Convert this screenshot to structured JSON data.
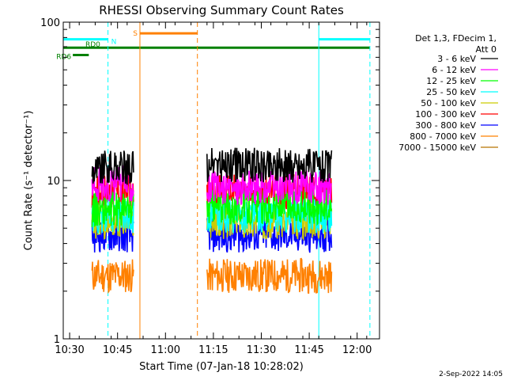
{
  "chart_data": {
    "type": "line",
    "title": "RHESSI Observing Summary Count Rates",
    "xlabel": "Start Time (07-Jan-18 10:28:02)",
    "ylabel": "Count Rate (s⁻¹ detector⁻¹)",
    "y_scale": "log",
    "ylim": [
      1,
      100
    ],
    "xlim": [
      "10:28",
      "12:07"
    ],
    "x_ticks": [
      "10:30",
      "10:45",
      "11:00",
      "11:15",
      "11:30",
      "11:45",
      "12:00"
    ],
    "y_ticks": [
      "1",
      "10",
      "100"
    ],
    "legend_header": [
      "Det 1,3, FDecim 1,",
      "Att 0"
    ],
    "legend_position": "right",
    "series": [
      {
        "name": "3 - 6 keV",
        "color": "#000000",
        "segments": [
          {
            "start": "10:37",
            "end": "10:50",
            "level": 12.0
          },
          {
            "start": "11:13",
            "end": "11:52",
            "level": 12.5
          }
        ]
      },
      {
        "name": "6 - 12 keV",
        "color": "#ff00ff",
        "segments": [
          {
            "start": "10:37",
            "end": "10:50",
            "level": 9.5
          },
          {
            "start": "11:13",
            "end": "11:52",
            "level": 9.0
          }
        ]
      },
      {
        "name": "12 - 25 keV",
        "color": "#00ff00",
        "segments": [
          {
            "start": "10:37",
            "end": "10:50",
            "level": 6.5
          },
          {
            "start": "11:13",
            "end": "11:52",
            "level": 6.8
          }
        ]
      },
      {
        "name": "25 - 50 keV",
        "color": "#00ffff",
        "segments": [
          {
            "start": "10:37",
            "end": "10:50",
            "level": 6.0
          },
          {
            "start": "11:13",
            "end": "11:52",
            "level": 6.0
          }
        ]
      },
      {
        "name": "50 - 100 keV",
        "color": "#cccc00",
        "segments": [
          {
            "start": "10:37",
            "end": "10:50",
            "level": 5.5
          },
          {
            "start": "11:13",
            "end": "11:52",
            "level": 5.5
          }
        ]
      },
      {
        "name": "100 - 300 keV",
        "color": "#ff0000",
        "segments": [
          {
            "start": "10:37",
            "end": "10:50",
            "level": 8.5
          },
          {
            "start": "11:13",
            "end": "11:52",
            "level": 8.5
          }
        ]
      },
      {
        "name": "300 - 800 keV",
        "color": "#0000ff",
        "segments": [
          {
            "start": "10:37",
            "end": "10:50",
            "level": 4.5
          },
          {
            "start": "11:13",
            "end": "11:52",
            "level": 4.5
          }
        ]
      },
      {
        "name": "800 - 7000 keV",
        "color": "#ff8000",
        "segments": [
          {
            "start": "10:37",
            "end": "10:50",
            "level": 2.5
          },
          {
            "start": "11:13",
            "end": "11:52",
            "level": 2.5
          }
        ]
      },
      {
        "name": "7000 - 15000 keV",
        "color": "#b87300",
        "segments": []
      }
    ],
    "flag_bars": [
      {
        "label": "N",
        "color": "#00ffff",
        "level": 78,
        "start": "10:28",
        "end": "10:42"
      },
      {
        "label": "",
        "color": "#00ffff",
        "level": 78,
        "start": "11:48",
        "end": "12:04"
      },
      {
        "label": "S",
        "color": "#ff8000",
        "level": 85,
        "start": "10:52",
        "end": "11:10"
      },
      {
        "label": "RD0",
        "color": "#008000",
        "level": 69,
        "start": "10:28",
        "end": "12:04"
      },
      {
        "label": "RD6",
        "color": "#008000",
        "level": 62,
        "start": "10:31",
        "end": "10:36"
      }
    ],
    "vlines": [
      {
        "t": "10:28",
        "color": "#00ffff",
        "dash": false
      },
      {
        "t": "10:42",
        "color": "#00ffff",
        "dash": true
      },
      {
        "t": "10:52",
        "color": "#ff8000",
        "dash": false
      },
      {
        "t": "11:10",
        "color": "#ff8000",
        "dash": true
      },
      {
        "t": "11:48",
        "color": "#00ffff",
        "dash": false
      },
      {
        "t": "12:04",
        "color": "#00ffff",
        "dash": true
      }
    ],
    "footer_timestamp": "2-Sep-2022 14:05"
  }
}
